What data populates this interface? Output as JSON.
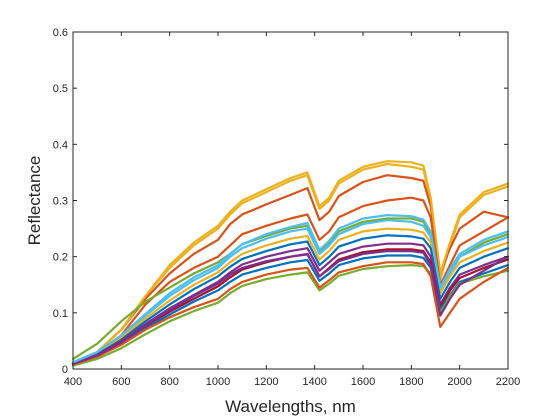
{
  "chart_data": {
    "type": "line",
    "title": "",
    "xlabel": "Wavelengths, nm",
    "ylabel": "Reflectance",
    "xlim": [
      400,
      2200
    ],
    "ylim": [
      0,
      0.6
    ],
    "xticks": [
      400,
      600,
      800,
      1000,
      1200,
      1400,
      1600,
      1800,
      2000,
      2200
    ],
    "yticks": [
      0,
      0.1,
      0.2,
      0.3,
      0.4,
      0.5,
      0.6
    ],
    "xtick_labels": [
      "400",
      "600",
      "800",
      "1000",
      "1200",
      "1400",
      "1600",
      "1800",
      "2000",
      "2200"
    ],
    "ytick_labels": [
      "0",
      "0.1",
      "0.2",
      "0.3",
      "0.4",
      "0.5",
      "0.6"
    ],
    "grid": false,
    "legend": false,
    "x": [
      400,
      500,
      600,
      700,
      800,
      900,
      1000,
      1050,
      1100,
      1200,
      1300,
      1370,
      1420,
      1460,
      1500,
      1600,
      1700,
      1800,
      1850,
      1880,
      1920,
      1960,
      2000,
      2100,
      2200
    ],
    "series": [
      {
        "color": "#EDB120",
        "values": [
          0.012,
          0.03,
          0.07,
          0.13,
          0.18,
          0.22,
          0.25,
          0.275,
          0.295,
          0.315,
          0.335,
          0.345,
          0.285,
          0.3,
          0.33,
          0.355,
          0.365,
          0.36,
          0.355,
          0.3,
          0.16,
          0.22,
          0.27,
          0.31,
          0.325
        ]
      },
      {
        "color": "#D95319",
        "values": [
          0.012,
          0.03,
          0.07,
          0.125,
          0.17,
          0.205,
          0.23,
          0.258,
          0.275,
          0.293,
          0.31,
          0.322,
          0.265,
          0.28,
          0.308,
          0.333,
          0.345,
          0.34,
          0.335,
          0.29,
          0.17,
          0.215,
          0.25,
          0.28,
          0.27
        ]
      },
      {
        "color": "#EDB120",
        "values": [
          0.012,
          0.03,
          0.07,
          0.13,
          0.185,
          0.225,
          0.255,
          0.28,
          0.3,
          0.32,
          0.34,
          0.35,
          0.29,
          0.305,
          0.335,
          0.36,
          0.37,
          0.368,
          0.362,
          0.305,
          0.17,
          0.225,
          0.275,
          0.315,
          0.33
        ]
      },
      {
        "color": "#D95319",
        "values": [
          0.008,
          0.025,
          0.06,
          0.115,
          0.155,
          0.18,
          0.2,
          0.22,
          0.24,
          0.255,
          0.268,
          0.275,
          0.23,
          0.245,
          0.27,
          0.29,
          0.3,
          0.305,
          0.3,
          0.27,
          0.15,
          0.185,
          0.22,
          0.245,
          0.27
        ]
      },
      {
        "color": "#77AC30",
        "values": [
          0.018,
          0.045,
          0.085,
          0.12,
          0.145,
          0.17,
          0.19,
          0.205,
          0.222,
          0.237,
          0.25,
          0.255,
          0.21,
          0.225,
          0.245,
          0.262,
          0.268,
          0.268,
          0.262,
          0.24,
          0.14,
          0.17,
          0.2,
          0.225,
          0.24
        ]
      },
      {
        "color": "#4DBEEE",
        "values": [
          0.01,
          0.028,
          0.058,
          0.095,
          0.13,
          0.158,
          0.18,
          0.2,
          0.215,
          0.232,
          0.245,
          0.25,
          0.205,
          0.22,
          0.24,
          0.258,
          0.265,
          0.262,
          0.255,
          0.235,
          0.14,
          0.17,
          0.2,
          0.22,
          0.235
        ]
      },
      {
        "color": "#EDB120",
        "values": [
          0.01,
          0.028,
          0.056,
          0.09,
          0.122,
          0.15,
          0.172,
          0.19,
          0.205,
          0.22,
          0.232,
          0.237,
          0.195,
          0.21,
          0.23,
          0.245,
          0.25,
          0.248,
          0.243,
          0.225,
          0.135,
          0.165,
          0.19,
          0.21,
          0.225
        ]
      },
      {
        "color": "#0072BD",
        "values": [
          0.01,
          0.026,
          0.052,
          0.085,
          0.115,
          0.142,
          0.165,
          0.182,
          0.196,
          0.21,
          0.222,
          0.227,
          0.185,
          0.2,
          0.218,
          0.232,
          0.238,
          0.236,
          0.232,
          0.215,
          0.125,
          0.155,
          0.18,
          0.2,
          0.215
        ]
      },
      {
        "color": "#7E2F8E",
        "values": [
          0.01,
          0.025,
          0.05,
          0.08,
          0.108,
          0.132,
          0.155,
          0.172,
          0.186,
          0.2,
          0.21,
          0.215,
          0.175,
          0.19,
          0.205,
          0.218,
          0.223,
          0.223,
          0.22,
          0.2,
          0.115,
          0.145,
          0.168,
          0.185,
          0.2
        ]
      },
      {
        "color": "#A2142F",
        "values": [
          0.01,
          0.024,
          0.048,
          0.076,
          0.102,
          0.125,
          0.147,
          0.163,
          0.177,
          0.19,
          0.2,
          0.205,
          0.165,
          0.18,
          0.195,
          0.208,
          0.213,
          0.213,
          0.21,
          0.19,
          0.11,
          0.14,
          0.162,
          0.18,
          0.195
        ]
      },
      {
        "color": "#0072BD",
        "values": [
          0.008,
          0.022,
          0.045,
          0.072,
          0.097,
          0.12,
          0.14,
          0.155,
          0.168,
          0.18,
          0.19,
          0.194,
          0.157,
          0.17,
          0.185,
          0.197,
          0.202,
          0.202,
          0.198,
          0.18,
          0.105,
          0.132,
          0.155,
          0.17,
          0.185
        ]
      },
      {
        "color": "#77AC30",
        "values": [
          0.006,
          0.018,
          0.037,
          0.062,
          0.085,
          0.103,
          0.118,
          0.135,
          0.148,
          0.16,
          0.168,
          0.172,
          0.14,
          0.152,
          0.166,
          0.178,
          0.183,
          0.185,
          0.183,
          0.17,
          0.1,
          0.13,
          0.152,
          0.165,
          0.175
        ]
      },
      {
        "color": "#D95319",
        "values": [
          0.008,
          0.022,
          0.043,
          0.07,
          0.092,
          0.11,
          0.125,
          0.142,
          0.155,
          0.168,
          0.177,
          0.18,
          0.145,
          0.158,
          0.172,
          0.183,
          0.19,
          0.19,
          0.187,
          0.165,
          0.075,
          0.1,
          0.125,
          0.155,
          0.18
        ]
      },
      {
        "color": "#7E2F8E",
        "values": [
          0.009,
          0.024,
          0.047,
          0.078,
          0.105,
          0.13,
          0.152,
          0.168,
          0.18,
          0.192,
          0.2,
          0.204,
          0.165,
          0.178,
          0.192,
          0.205,
          0.21,
          0.21,
          0.207,
          0.185,
          0.095,
          0.125,
          0.15,
          0.175,
          0.2
        ]
      },
      {
        "color": "#4DBEEE",
        "values": [
          0.012,
          0.03,
          0.06,
          0.098,
          0.135,
          0.163,
          0.185,
          0.205,
          0.222,
          0.24,
          0.253,
          0.26,
          0.212,
          0.228,
          0.25,
          0.268,
          0.274,
          0.272,
          0.266,
          0.245,
          0.145,
          0.178,
          0.205,
          0.23,
          0.245
        ]
      }
    ]
  }
}
